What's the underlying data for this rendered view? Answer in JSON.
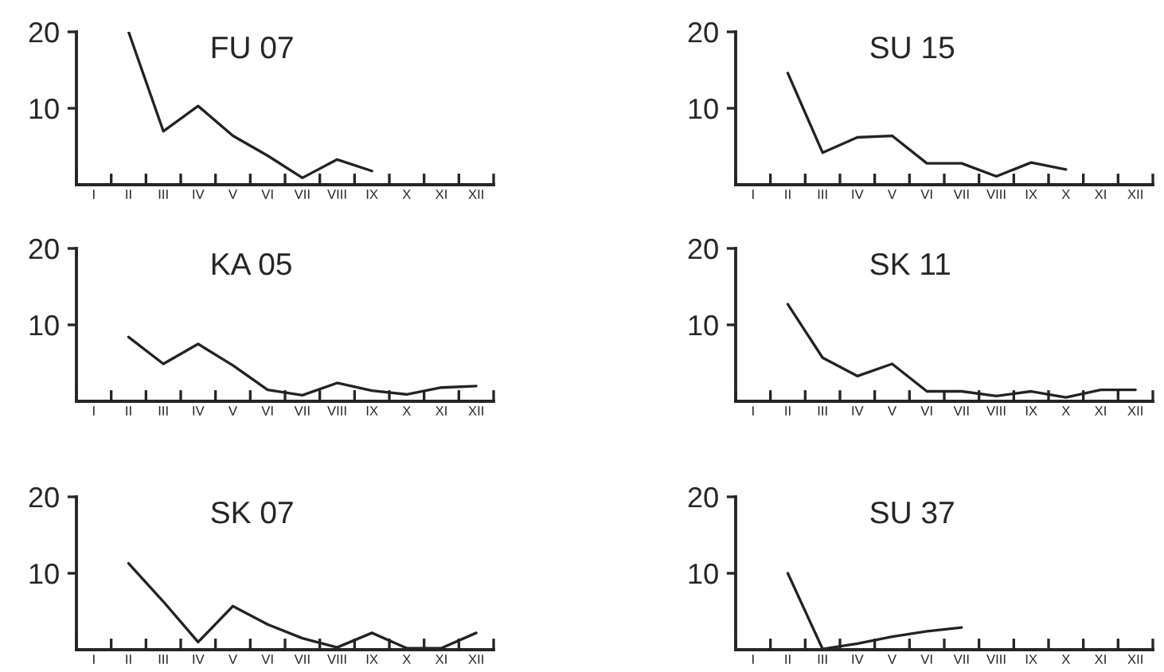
{
  "chart_data": [
    {
      "type": "line",
      "title": "FU 07",
      "categories": [
        "I",
        "II",
        "III",
        "IV",
        "V",
        "VI",
        "VII",
        "VIII",
        "IX",
        "X",
        "XI",
        "XII"
      ],
      "values": [
        null,
        20,
        7,
        10.3,
        6.4,
        3.8,
        0.9,
        3.3,
        1.8,
        null,
        null,
        null
      ],
      "color": "#222222",
      "ylim": [
        0,
        20
      ],
      "yticks": [
        10,
        20
      ]
    },
    {
      "type": "line",
      "title": "SU 15",
      "categories": [
        "I",
        "II",
        "III",
        "IV",
        "V",
        "VI",
        "VII",
        "VIII",
        "IX",
        "X",
        "XI",
        "XII"
      ],
      "values": [
        null,
        14.6,
        4.2,
        6.2,
        6.4,
        2.8,
        2.8,
        1.1,
        2.9,
        2.0,
        null,
        null
      ],
      "color": "#222222",
      "ylim": [
        0,
        20
      ],
      "yticks": [
        10,
        20
      ]
    },
    {
      "type": "line",
      "title": "KA 05",
      "categories": [
        "I",
        "II",
        "III",
        "IV",
        "V",
        "VI",
        "VII",
        "VIII",
        "IX",
        "X",
        "XI",
        "XII"
      ],
      "values": [
        null,
        8.4,
        4.9,
        7.5,
        4.7,
        1.5,
        0.8,
        2.4,
        1.4,
        0.9,
        1.8,
        2.0
      ],
      "color": "#222222",
      "ylim": [
        0,
        20
      ],
      "yticks": [
        10,
        20
      ]
    },
    {
      "type": "line",
      "title": "SK 11",
      "categories": [
        "I",
        "II",
        "III",
        "IV",
        "V",
        "VI",
        "VII",
        "VIII",
        "IX",
        "X",
        "XI",
        "XII"
      ],
      "values": [
        null,
        12.7,
        5.7,
        3.3,
        4.9,
        1.3,
        1.3,
        0.7,
        1.3,
        0.5,
        1.5,
        1.5
      ],
      "color": "#222222",
      "ylim": [
        0,
        20
      ],
      "yticks": [
        10,
        20
      ]
    },
    {
      "type": "line",
      "title": "SK 07",
      "categories": [
        "I",
        "II",
        "III",
        "IV",
        "V",
        "VI",
        "VII",
        "VIII",
        "IX",
        "X",
        "XI",
        "XII"
      ],
      "values": [
        null,
        11.3,
        6.3,
        1.0,
        5.7,
        3.3,
        1.5,
        0.3,
        2.2,
        0.2,
        0.2,
        2.2
      ],
      "color": "#222222",
      "ylim": [
        0,
        20
      ],
      "yticks": [
        10,
        20
      ]
    },
    {
      "type": "line",
      "title": "SU 37",
      "categories": [
        "I",
        "II",
        "III",
        "IV",
        "V",
        "VI",
        "VII",
        "VIII",
        "IX",
        "X",
        "XI",
        "XII"
      ],
      "values": [
        null,
        10,
        0.1,
        0.8,
        1.7,
        2.4,
        2.9,
        null,
        null,
        null,
        null,
        null
      ],
      "color": "#222222",
      "ylim": [
        0,
        20
      ],
      "yticks": [
        10,
        20
      ]
    }
  ]
}
